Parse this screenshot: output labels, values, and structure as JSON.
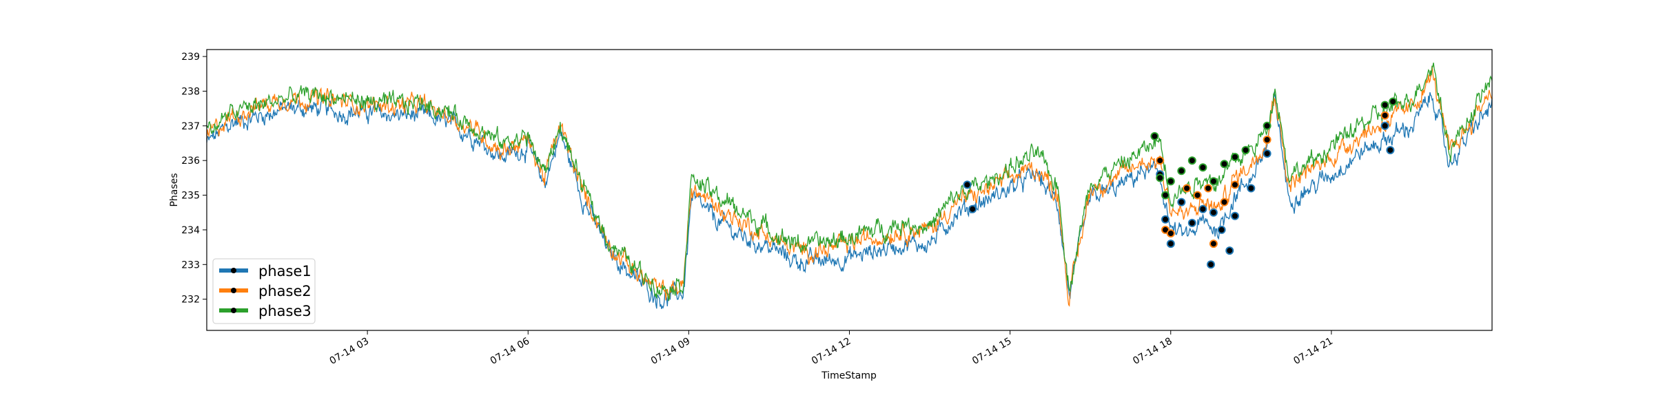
{
  "chart_data": {
    "type": "line",
    "xlabel": "TimeStamp",
    "ylabel": "Phases",
    "ylim": [
      231.1,
      239.2
    ],
    "xlim_hours": [
      0.0,
      24.0
    ],
    "x_ticks": [
      {
        "hour": 3,
        "label": "07-14 03"
      },
      {
        "hour": 6,
        "label": "07-14 06"
      },
      {
        "hour": 9,
        "label": "07-14 09"
      },
      {
        "hour": 12,
        "label": "07-14 12"
      },
      {
        "hour": 15,
        "label": "07-14 15"
      },
      {
        "hour": 18,
        "label": "07-14 18"
      },
      {
        "hour": 21,
        "label": "07-14 21"
      }
    ],
    "y_ticks": [
      232,
      233,
      234,
      235,
      236,
      237,
      238,
      239
    ],
    "grid": false,
    "legend_position": "lower-left",
    "series": [
      {
        "name": "phase1",
        "color": "#1f77b4",
        "x": [
          0,
          0.5,
          1,
          1.5,
          2,
          2.5,
          3,
          3.5,
          4,
          4.5,
          5,
          5.5,
          6,
          6.3,
          6.6,
          7,
          7.5,
          8,
          8.5,
          8.9,
          9.05,
          9.5,
          10,
          10.5,
          11,
          11.5,
          12,
          12.5,
          13,
          13.5,
          14,
          14.5,
          15,
          15.5,
          15.9,
          16.1,
          16.5,
          17,
          17.5,
          17.8,
          18,
          18.3,
          18.6,
          18.9,
          19.2,
          19.5,
          19.8,
          19.95,
          20.2,
          20.6,
          21,
          21.5,
          22,
          22.5,
          22.9,
          23.2,
          23.6,
          24
        ],
        "y": [
          236.5,
          237.1,
          237.3,
          237.5,
          237.5,
          237.4,
          237.4,
          237.3,
          237.3,
          237.1,
          236.7,
          236.1,
          236.4,
          235.3,
          236.8,
          235.0,
          233.4,
          232.6,
          232.0,
          232.2,
          234.9,
          234.3,
          233.8,
          233.5,
          233.1,
          233.1,
          233.2,
          233.4,
          233.6,
          233.6,
          234.5,
          234.8,
          235.2,
          235.6,
          234.7,
          232.1,
          234.9,
          235.2,
          235.7,
          235.6,
          234.0,
          233.8,
          234.2,
          234.0,
          235.0,
          235.5,
          236.4,
          237.8,
          234.9,
          235.2,
          235.6,
          236.2,
          236.6,
          237.0,
          237.9,
          235.9,
          236.8,
          237.6
        ]
      },
      {
        "name": "phase2",
        "color": "#ff7f0e",
        "x": [
          0,
          0.5,
          1,
          1.5,
          2,
          2.5,
          3,
          3.5,
          4,
          4.5,
          5,
          5.5,
          6,
          6.3,
          6.6,
          7,
          7.5,
          8,
          8.5,
          8.9,
          9.05,
          9.5,
          10,
          10.5,
          11,
          11.5,
          12,
          12.5,
          13,
          13.5,
          14,
          14.5,
          15,
          15.5,
          15.9,
          16.1,
          16.5,
          17,
          17.5,
          17.8,
          18,
          18.3,
          18.6,
          18.9,
          19.2,
          19.5,
          19.8,
          19.95,
          20.2,
          20.6,
          21,
          21.5,
          22,
          22.5,
          22.9,
          23.2,
          23.6,
          24
        ],
        "y": [
          236.7,
          237.3,
          237.6,
          237.8,
          237.8,
          237.7,
          237.6,
          237.6,
          237.6,
          237.3,
          236.9,
          236.3,
          236.6,
          235.5,
          237.0,
          235.2,
          233.6,
          232.8,
          232.2,
          232.4,
          235.2,
          234.7,
          234.2,
          233.8,
          233.4,
          233.4,
          233.6,
          233.8,
          234.0,
          234.0,
          234.8,
          235.1,
          235.5,
          235.8,
          235.0,
          232.0,
          235.2,
          235.5,
          236.0,
          236.0,
          234.6,
          234.4,
          234.8,
          234.6,
          235.5,
          235.9,
          236.7,
          238.0,
          235.3,
          235.7,
          236.1,
          236.7,
          237.1,
          237.5,
          238.5,
          236.2,
          237.1,
          238.1
        ]
      },
      {
        "name": "phase3",
        "color": "#2ca02c",
        "x": [
          0,
          0.5,
          1,
          1.5,
          2,
          2.5,
          3,
          3.5,
          4,
          4.5,
          5,
          5.5,
          6,
          6.3,
          6.6,
          7,
          7.5,
          8,
          8.5,
          8.9,
          9.05,
          9.5,
          10,
          10.5,
          11,
          11.5,
          12,
          12.5,
          13,
          13.5,
          14,
          14.5,
          15,
          15.5,
          15.9,
          16.1,
          16.5,
          17,
          17.5,
          17.8,
          18,
          18.3,
          18.6,
          18.9,
          19.2,
          19.5,
          19.8,
          19.95,
          20.2,
          20.6,
          21,
          21.5,
          22,
          22.5,
          22.9,
          23.2,
          23.6,
          24
        ],
        "y": [
          236.8,
          237.4,
          237.6,
          237.8,
          237.9,
          237.8,
          237.7,
          237.6,
          237.7,
          237.4,
          237.0,
          236.5,
          236.7,
          235.6,
          237.0,
          235.3,
          233.7,
          232.9,
          232.3,
          232.5,
          235.5,
          235.0,
          234.5,
          234.0,
          233.6,
          233.6,
          233.8,
          234.0,
          234.2,
          234.1,
          235.0,
          235.3,
          235.8,
          236.2,
          235.2,
          232.3,
          235.4,
          235.8,
          236.3,
          236.6,
          235.0,
          235.2,
          235.5,
          235.4,
          236.0,
          236.3,
          236.9,
          238.2,
          235.6,
          235.9,
          236.4,
          237.0,
          237.4,
          237.8,
          238.8,
          236.3,
          237.3,
          238.4
        ]
      }
    ],
    "anomalies": [
      {
        "series": "phase1",
        "x": [
          14.2,
          14.3,
          17.8,
          17.9,
          18.0,
          18.2,
          18.4,
          18.6,
          18.75,
          18.8,
          18.95,
          19.1,
          19.2,
          19.5,
          19.8,
          22.0,
          22.1
        ],
        "y": [
          235.3,
          234.6,
          235.6,
          234.3,
          233.6,
          234.8,
          234.2,
          234.6,
          233.0,
          234.5,
          234.0,
          233.4,
          234.4,
          235.2,
          236.2,
          237.0,
          236.3
        ]
      },
      {
        "series": "phase2",
        "x": [
          17.8,
          17.9,
          18.0,
          18.3,
          18.5,
          18.7,
          18.8,
          19.0,
          19.2,
          19.8,
          22.0
        ],
        "y": [
          236.0,
          234.0,
          233.9,
          235.2,
          235.0,
          235.2,
          233.6,
          234.8,
          235.3,
          236.6,
          237.3
        ]
      },
      {
        "series": "phase3",
        "x": [
          17.7,
          17.8,
          17.9,
          18.0,
          18.2,
          18.4,
          18.6,
          18.8,
          19.0,
          19.2,
          19.4,
          19.8,
          22.0,
          22.15
        ],
        "y": [
          236.7,
          235.5,
          235.0,
          235.4,
          235.7,
          236.0,
          235.8,
          235.4,
          235.9,
          236.1,
          236.3,
          237.0,
          237.6,
          237.7
        ]
      }
    ]
  }
}
